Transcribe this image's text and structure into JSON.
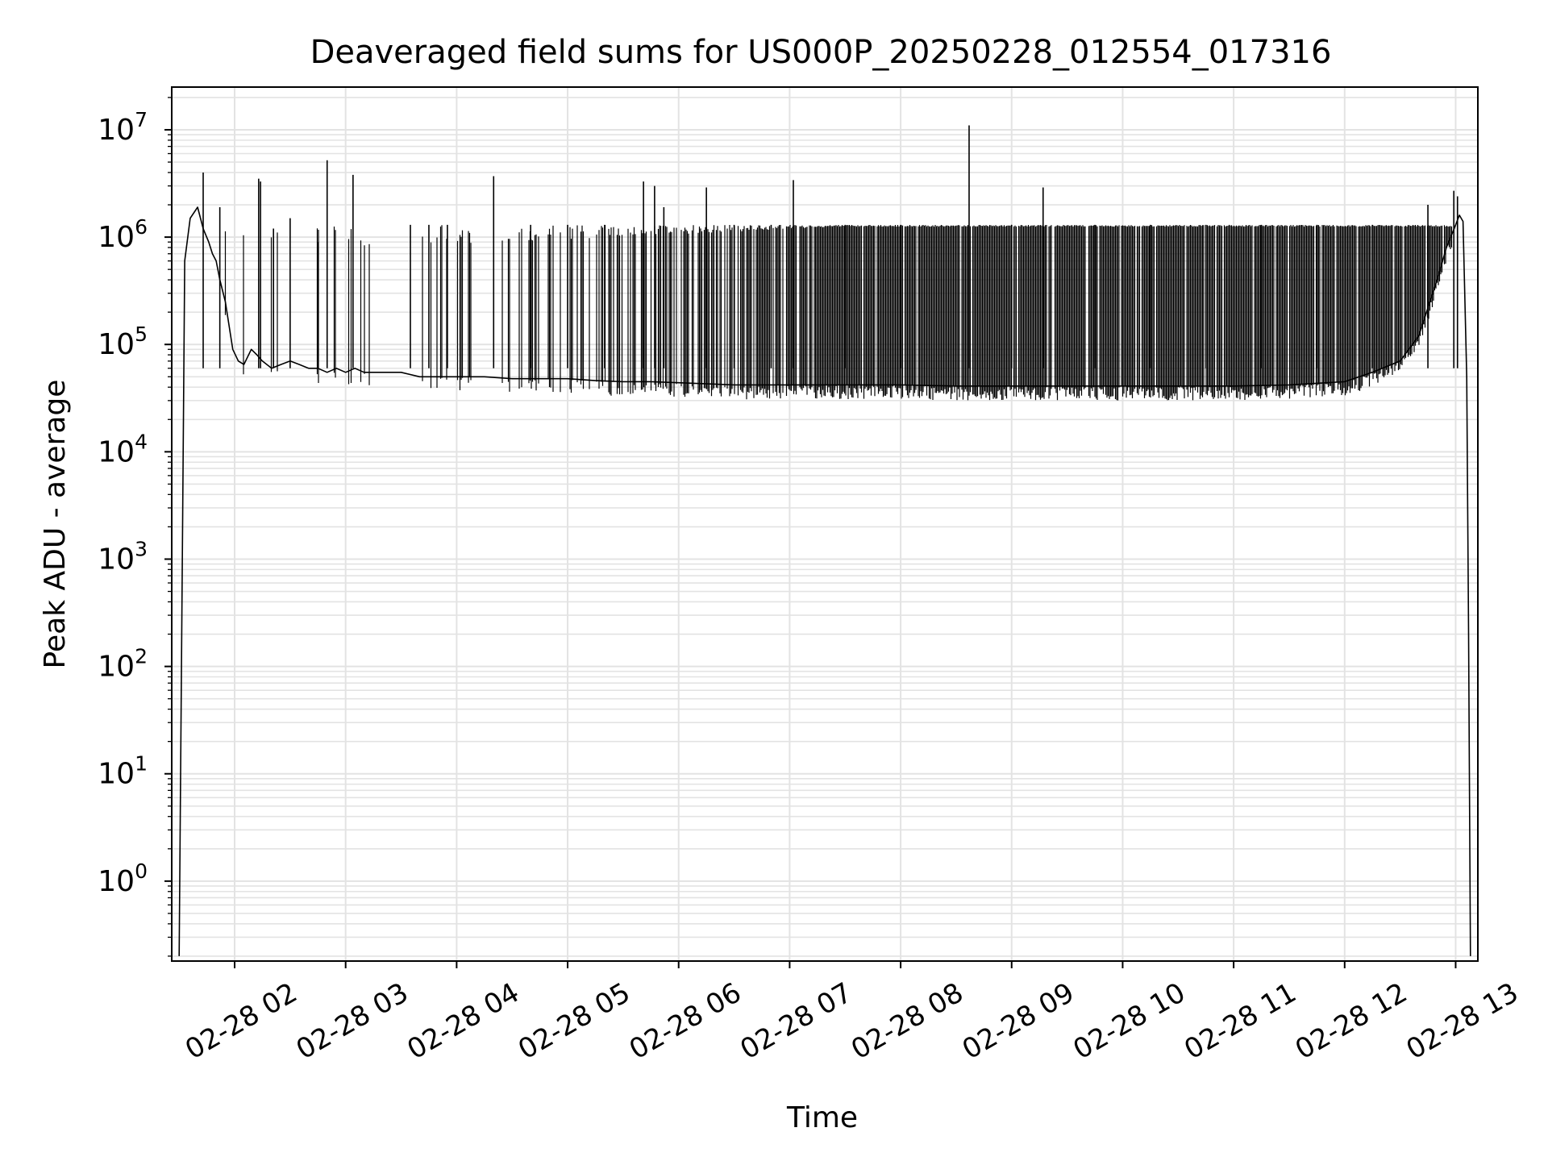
{
  "chart_data": {
    "type": "line",
    "title": "Deaveraged field sums for US000P_20250228_012554_017316",
    "xlabel": "Time",
    "ylabel": "Peak ADU - average",
    "yscale": "log",
    "ylim": [
      0.18,
      25000000
    ],
    "xlim": [
      "2025-02-28 01:26",
      "2025-02-28 13:12"
    ],
    "grid": true,
    "line_color": "#000000",
    "grid_color": "#e3e3e3",
    "x_ticks": [
      "02-28 02",
      "02-28 03",
      "02-28 04",
      "02-28 05",
      "02-28 06",
      "02-28 07",
      "02-28 08",
      "02-28 09",
      "02-28 10",
      "02-28 11",
      "02-28 12",
      "02-28 13"
    ],
    "y_ticks": [
      {
        "value": 1,
        "base": "10",
        "exp": "0"
      },
      {
        "value": 10,
        "base": "10",
        "exp": "1"
      },
      {
        "value": 100,
        "base": "10",
        "exp": "2"
      },
      {
        "value": 1000,
        "base": "10",
        "exp": "3"
      },
      {
        "value": 10000,
        "base": "10",
        "exp": "4"
      },
      {
        "value": 100000,
        "base": "10",
        "exp": "5"
      },
      {
        "value": 1000000,
        "base": "10",
        "exp": "6"
      },
      {
        "value": 10000000,
        "base": "10",
        "exp": "7"
      }
    ],
    "series": [
      {
        "name": "",
        "x": [
          "2025-02-28 01:30",
          "2025-02-28 01:33",
          "2025-02-28 01:36",
          "2025-02-28 01:40",
          "2025-02-28 01:43",
          "2025-02-28 01:46",
          "2025-02-28 01:48",
          "2025-02-28 01:50",
          "2025-02-28 01:52",
          "2025-02-28 01:55",
          "2025-02-28 01:57",
          "2025-02-28 01:59",
          "2025-02-28 02:02",
          "2025-02-28 02:05",
          "2025-02-28 02:09",
          "2025-02-28 02:12",
          "2025-02-28 02:15",
          "2025-02-28 02:20",
          "2025-02-28 02:25",
          "2025-02-28 02:30",
          "2025-02-28 02:35",
          "2025-02-28 02:40",
          "2025-02-28 02:45",
          "2025-02-28 02:50",
          "2025-02-28 02:55",
          "2025-02-28 03:00",
          "2025-02-28 03:05",
          "2025-02-28 03:10",
          "2025-02-28 03:20",
          "2025-02-28 03:30",
          "2025-02-28 03:40",
          "2025-02-28 03:50",
          "2025-02-28 04:00",
          "2025-02-28 04:15",
          "2025-02-28 04:30",
          "2025-02-28 04:45",
          "2025-02-28 05:00",
          "2025-02-28 05:15",
          "2025-02-28 05:30",
          "2025-02-28 05:45",
          "2025-02-28 06:00",
          "2025-02-28 06:30",
          "2025-02-28 07:00",
          "2025-02-28 07:30",
          "2025-02-28 08:00",
          "2025-02-28 08:30",
          "2025-02-28 09:00",
          "2025-02-28 09:30",
          "2025-02-28 10:00",
          "2025-02-28 10:30",
          "2025-02-28 11:00",
          "2025-02-28 11:30",
          "2025-02-28 12:00",
          "2025-02-28 12:15",
          "2025-02-28 12:30",
          "2025-02-28 12:40",
          "2025-02-28 12:50",
          "2025-02-28 12:55",
          "2025-02-28 13:00",
          "2025-02-28 13:02",
          "2025-02-28 13:04",
          "2025-02-28 13:06",
          "2025-02-28 13:07",
          "2025-02-28 13:08"
        ],
        "y": [
          0.2,
          600000,
          1500000,
          1900000,
          1200000,
          900000,
          700000,
          600000,
          400000,
          250000,
          150000,
          90000,
          70000,
          65000,
          90000,
          80000,
          70000,
          60000,
          65000,
          70000,
          65000,
          60000,
          60000,
          55000,
          60000,
          55000,
          60000,
          55000,
          55000,
          55000,
          50000,
          50000,
          50000,
          50000,
          48000,
          48000,
          48000,
          46000,
          45000,
          45000,
          44000,
          42000,
          42000,
          42000,
          42000,
          41000,
          41000,
          41000,
          41000,
          41000,
          41000,
          42000,
          45000,
          55000,
          70000,
          120000,
          400000,
          800000,
          1300000,
          1600000,
          1400000,
          50000,
          200,
          0.2
        ]
      }
    ],
    "spikes": [
      {
        "x": "2025-02-28 01:43",
        "y": 4000000
      },
      {
        "x": "2025-02-28 01:52",
        "y": 1900000
      },
      {
        "x": "2025-02-28 02:13",
        "y": 3500000
      },
      {
        "x": "2025-02-28 02:14",
        "y": 3300000
      },
      {
        "x": "2025-02-28 02:21",
        "y": 1200000
      },
      {
        "x": "2025-02-28 02:30",
        "y": 1500000
      },
      {
        "x": "2025-02-28 02:45",
        "y": 900000
      },
      {
        "x": "2025-02-28 02:50",
        "y": 5200000
      },
      {
        "x": "2025-02-28 03:04",
        "y": 3800000
      },
      {
        "x": "2025-02-28 03:35",
        "y": 1300000
      },
      {
        "x": "2025-02-28 03:45",
        "y": 1300000
      },
      {
        "x": "2025-02-28 03:55",
        "y": 1300000
      },
      {
        "x": "2025-02-28 04:20",
        "y": 3700000
      },
      {
        "x": "2025-02-28 04:40",
        "y": 1300000
      },
      {
        "x": "2025-02-28 05:00",
        "y": 1300000
      },
      {
        "x": "2025-02-28 05:20",
        "y": 1300000
      },
      {
        "x": "2025-02-28 05:41",
        "y": 3300000
      },
      {
        "x": "2025-02-28 05:47",
        "y": 3000000
      },
      {
        "x": "2025-02-28 05:52",
        "y": 1900000
      },
      {
        "x": "2025-02-28 06:15",
        "y": 2900000
      },
      {
        "x": "2025-02-28 06:30",
        "y": 1300000
      },
      {
        "x": "2025-02-28 06:50",
        "y": 1300000
      },
      {
        "x": "2025-02-28 07:02",
        "y": 3400000
      },
      {
        "x": "2025-02-28 07:30",
        "y": 1300000
      },
      {
        "x": "2025-02-28 08:00",
        "y": 1300000
      },
      {
        "x": "2025-02-28 08:37",
        "y": 11000000
      },
      {
        "x": "2025-02-28 09:00",
        "y": 1300000
      },
      {
        "x": "2025-02-28 09:17",
        "y": 2900000
      },
      {
        "x": "2025-02-28 09:45",
        "y": 1300000
      },
      {
        "x": "2025-02-28 10:15",
        "y": 1300000
      },
      {
        "x": "2025-02-28 10:45",
        "y": 1300000
      },
      {
        "x": "2025-02-28 11:15",
        "y": 1300000
      },
      {
        "x": "2025-02-28 11:45",
        "y": 1300000
      },
      {
        "x": "2025-02-28 12:15",
        "y": 1300000
      },
      {
        "x": "2025-02-28 12:45",
        "y": 2000000
      },
      {
        "x": "2025-02-28 12:59",
        "y": 2700000
      },
      {
        "x": "2025-02-28 13:01",
        "y": 2400000
      }
    ]
  }
}
